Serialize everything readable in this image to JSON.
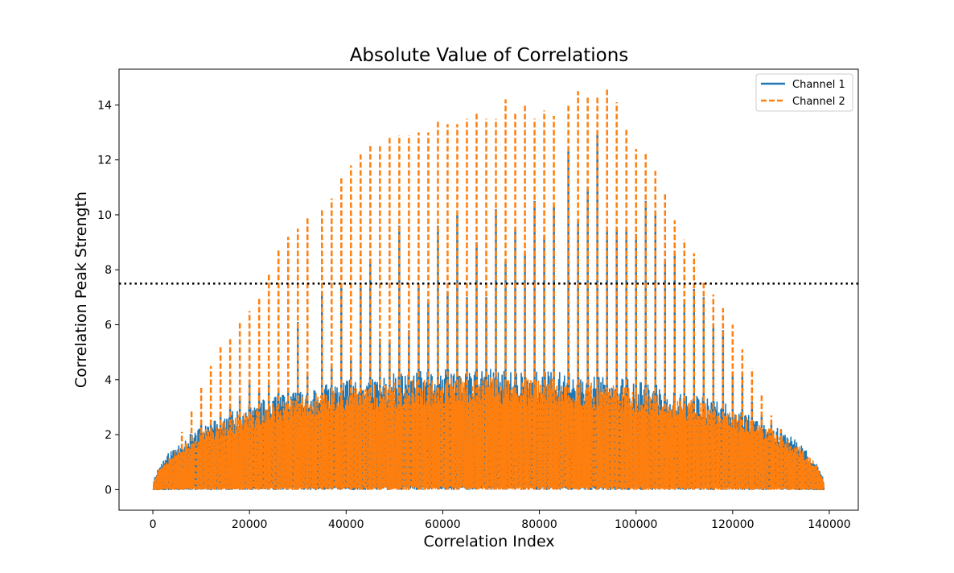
{
  "chart_data": {
    "type": "line",
    "title": "Absolute Value of Correlations",
    "xlabel": "Correlation Index",
    "ylabel": "Correlation Peak Strength",
    "xlim": [
      -7000,
      146000
    ],
    "ylim": [
      -0.75,
      15.3
    ],
    "x_ticks": [
      0,
      20000,
      40000,
      60000,
      80000,
      100000,
      120000,
      140000
    ],
    "x_tick_labels": [
      "0",
      "20000",
      "40000",
      "60000",
      "80000",
      "100000",
      "120000",
      "140000"
    ],
    "y_ticks": [
      0,
      2,
      4,
      6,
      8,
      10,
      12,
      14
    ],
    "y_tick_labels": [
      "0",
      "2",
      "4",
      "6",
      "8",
      "10",
      "12",
      "14"
    ],
    "x_range": [
      0,
      139000
    ],
    "threshold": {
      "y": 7.5,
      "style": "dotted",
      "color": "#000000"
    },
    "legend": {
      "location": "upper right"
    },
    "grid": false,
    "series": [
      {
        "name": "Channel 1",
        "style": "solid",
        "color": "#1f77b4",
        "peaks": {
          "x": [
            6000,
            8000,
            10000,
            12000,
            14000,
            16000,
            18000,
            20000,
            22000,
            24000,
            26000,
            28000,
            30000,
            32000,
            35000,
            37000,
            39000,
            41000,
            43000,
            45000,
            47000,
            49000,
            51000,
            53000,
            55000,
            57000,
            59000,
            61000,
            63000,
            65000,
            67000,
            69000,
            71000,
            73000,
            75000,
            77000,
            79000,
            81000,
            83000,
            86000,
            88000,
            90000,
            92000,
            94000,
            96000,
            98000,
            100000,
            102000,
            104000,
            106000,
            108000,
            110000,
            112000,
            114000,
            116000,
            118000,
            120000,
            122000,
            124000,
            126000,
            128000,
            130000
          ],
          "y": [
            1.3,
            2.0,
            2.4,
            2.4,
            2.8,
            3.0,
            3.4,
            4.0,
            3.6,
            3.8,
            3.6,
            3.7,
            6.1,
            4.2,
            7.2,
            4.6,
            7.4,
            4.8,
            7.4,
            8.4,
            5.5,
            5.4,
            9.6,
            5.8,
            7.5,
            6.8,
            9.6,
            7.2,
            10.0,
            7.0,
            9.0,
            7.0,
            10.2,
            8.3,
            9.5,
            8.6,
            10.5,
            9.2,
            10.3,
            12.3,
            9.8,
            11.0,
            12.9,
            9.4,
            9.5,
            9.5,
            9.3,
            10.5,
            10.0,
            8.3,
            8.5,
            6.9,
            7.3,
            7.0,
            6.0,
            5.8,
            4.3,
            4.1,
            3.2,
            2.7,
            2.4,
            2.2
          ]
        }
      },
      {
        "name": "Channel 2",
        "style": "dashed",
        "color": "#ff7f0e",
        "peaks": {
          "x": [
            6000,
            8000,
            10000,
            12000,
            14000,
            16000,
            18000,
            20000,
            22000,
            24000,
            26000,
            28000,
            30000,
            32000,
            35000,
            37000,
            39000,
            41000,
            43000,
            45000,
            47000,
            49000,
            51000,
            53000,
            55000,
            57000,
            59000,
            61000,
            63000,
            65000,
            67000,
            69000,
            71000,
            73000,
            75000,
            77000,
            79000,
            81000,
            83000,
            86000,
            88000,
            90000,
            92000,
            94000,
            96000,
            98000,
            100000,
            102000,
            104000,
            106000,
            108000,
            110000,
            112000,
            114000,
            116000,
            118000,
            120000,
            122000,
            124000,
            126000,
            128000,
            130000
          ],
          "y": [
            2.1,
            2.9,
            3.7,
            4.5,
            5.2,
            5.5,
            6.1,
            6.5,
            7.0,
            7.9,
            8.7,
            9.2,
            9.5,
            9.9,
            10.2,
            10.6,
            11.4,
            11.8,
            12.2,
            12.6,
            12.5,
            12.8,
            12.9,
            12.9,
            13.0,
            13.0,
            13.4,
            13.3,
            13.3,
            13.5,
            13.7,
            13.5,
            13.5,
            14.2,
            13.7,
            14.0,
            13.5,
            13.8,
            13.6,
            14.0,
            14.5,
            14.3,
            14.3,
            14.6,
            14.1,
            13.1,
            12.4,
            12.3,
            11.6,
            10.8,
            9.8,
            9.1,
            8.6,
            7.6,
            7.1,
            6.6,
            6.0,
            5.1,
            4.4,
            3.5,
            2.7,
            2.2
          ]
        }
      }
    ]
  }
}
